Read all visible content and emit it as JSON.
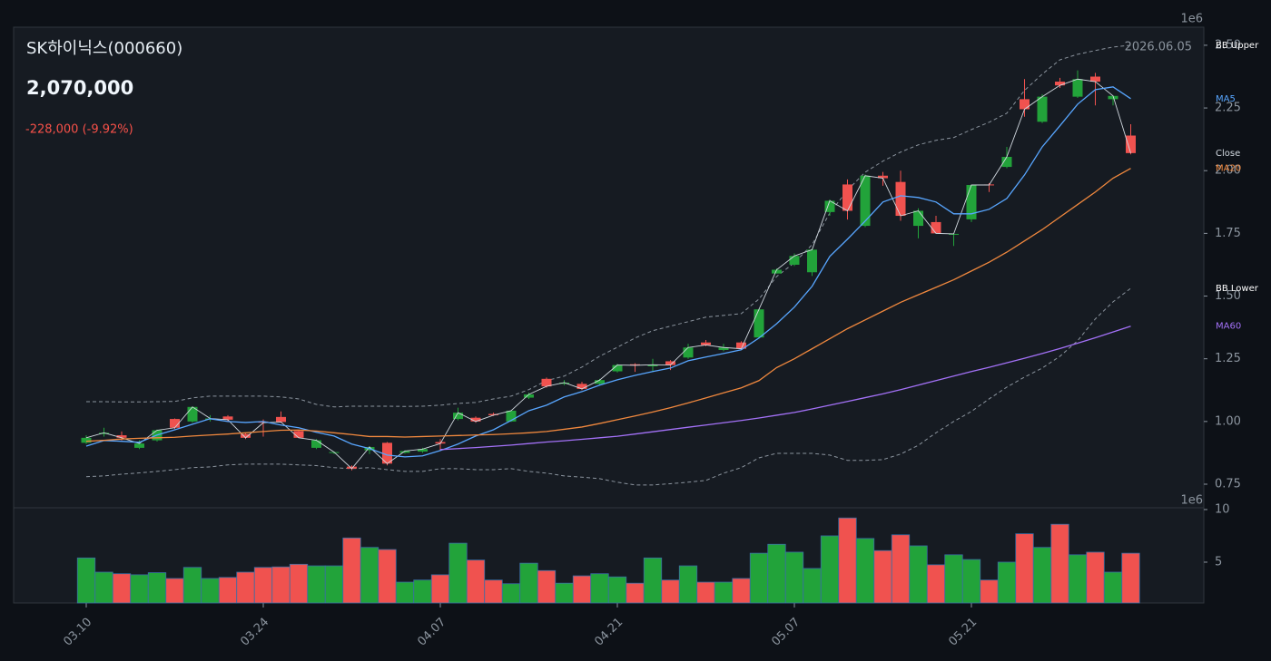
{
  "chart_data": [
    {
      "type": "candlestick",
      "title": "SK하이닉스(000660)",
      "price_label": "2,070,000",
      "change_label": "-228,000 (-9.92%)",
      "date_label": "2026.06.05",
      "offset_label": "1e6",
      "categories": [
        "03.10",
        null,
        null,
        null,
        null,
        null,
        null,
        null,
        null,
        null,
        "03.24",
        null,
        null,
        null,
        null,
        null,
        null,
        null,
        null,
        null,
        "04.07",
        null,
        null,
        null,
        null,
        null,
        null,
        null,
        null,
        null,
        "04.21",
        null,
        null,
        null,
        null,
        null,
        null,
        null,
        null,
        null,
        "05.07",
        null,
        null,
        null,
        null,
        null,
        null,
        null,
        null,
        null,
        "05.21",
        null,
        null,
        null,
        null,
        null,
        null,
        null,
        null,
        null
      ],
      "open": [
        0.915,
        0.95,
        0.945,
        0.895,
        0.925,
        1.01,
        1.0,
        1.008,
        1.02,
        0.95,
        1.0,
        1.018,
        0.962,
        0.895,
        0.875,
        0.82,
        0.885,
        0.915,
        0.875,
        0.88,
        0.918,
        1.01,
        1.015,
        1.03,
        1.0,
        1.095,
        1.17,
        1.15,
        1.15,
        1.15,
        1.2,
        1.228,
        1.22,
        1.24,
        1.255,
        1.315,
        1.285,
        1.315,
        1.335,
        1.59,
        1.625,
        1.595,
        1.835,
        1.945,
        1.78,
        1.98,
        1.955,
        1.78,
        1.795,
        1.745,
        1.806,
        1.945,
        2.015,
        2.285,
        2.195,
        2.355,
        2.295,
        2.375,
        2.285,
        2.14
      ],
      "high": [
        0.945,
        0.975,
        0.96,
        0.925,
        0.968,
        1.012,
        1.06,
        1.025,
        1.025,
        0.955,
        1.008,
        1.04,
        0.965,
        0.93,
        0.88,
        0.825,
        0.902,
        0.918,
        0.885,
        0.895,
        0.93,
        1.055,
        1.02,
        1.035,
        1.045,
        1.115,
        1.175,
        1.165,
        1.158,
        1.17,
        1.23,
        1.232,
        1.25,
        1.245,
        1.31,
        1.325,
        1.31,
        1.32,
        1.45,
        1.61,
        1.67,
        1.69,
        1.885,
        1.965,
        1.985,
        1.995,
        2.0,
        1.85,
        1.82,
        1.75,
        1.945,
        1.95,
        2.095,
        2.365,
        2.305,
        2.37,
        2.4,
        2.39,
        2.3,
        2.185
      ],
      "low": [
        0.91,
        0.94,
        0.925,
        0.89,
        0.92,
        0.97,
        0.995,
        1.0,
        1.0,
        0.93,
        0.94,
        0.995,
        0.935,
        0.89,
        0.87,
        0.805,
        0.87,
        0.825,
        0.872,
        0.875,
        0.885,
        1.005,
        0.995,
        1.022,
        0.998,
        1.09,
        1.135,
        1.145,
        1.125,
        1.145,
        1.195,
        1.198,
        1.2,
        1.205,
        1.25,
        1.3,
        1.28,
        1.285,
        1.33,
        1.59,
        1.62,
        1.58,
        1.82,
        1.805,
        1.775,
        1.94,
        1.8,
        1.73,
        1.75,
        1.7,
        1.795,
        1.915,
        2.01,
        2.215,
        2.19,
        2.33,
        2.29,
        2.26,
        2.26,
        2.065
      ],
      "close": [
        0.935,
        0.955,
        0.935,
        0.912,
        0.965,
        0.975,
        1.058,
        1.012,
        1.007,
        0.935,
        0.995,
        0.998,
        0.935,
        0.925,
        0.878,
        0.812,
        0.898,
        0.832,
        0.882,
        0.89,
        0.912,
        1.035,
        1.0,
        1.025,
        1.043,
        1.108,
        1.14,
        1.155,
        1.13,
        1.165,
        1.225,
        1.224,
        1.226,
        1.225,
        1.295,
        1.305,
        1.295,
        1.29,
        1.447,
        1.605,
        1.66,
        1.685,
        1.88,
        1.84,
        1.98,
        1.97,
        1.82,
        1.84,
        1.75,
        1.748,
        1.943,
        1.943,
        2.055,
        2.245,
        2.295,
        2.34,
        2.365,
        2.355,
        2.298,
        2.07
      ],
      "up_color": "#22a33a",
      "down_color": "#f0524f",
      "close_name": "Close",
      "close_color": "#d0d7de",
      "lines": [
        {
          "name": "BB Upper",
          "color": "#8b949e",
          "label_color": "#ffffff",
          "dashed": true,
          "values": [
            1.079,
            1.079,
            1.078,
            1.078,
            1.079,
            1.08,
            1.094,
            1.101,
            1.101,
            1.101,
            1.101,
            1.098,
            1.09,
            1.068,
            1.058,
            1.061,
            1.061,
            1.061,
            1.06,
            1.061,
            1.065,
            1.072,
            1.076,
            1.09,
            1.101,
            1.127,
            1.163,
            1.181,
            1.217,
            1.26,
            1.296,
            1.333,
            1.362,
            1.38,
            1.398,
            1.416,
            1.423,
            1.43,
            1.488,
            1.578,
            1.633,
            1.705,
            1.831,
            1.922,
            1.994,
            2.038,
            2.074,
            2.103,
            2.121,
            2.132,
            2.164,
            2.193,
            2.229,
            2.32,
            2.385,
            2.442,
            2.464,
            2.479,
            2.493,
            2.5
          ]
        },
        {
          "name": "MA5",
          "color": "#58a6ff",
          "label_color": "#58a6ff",
          "dashed": false,
          "values": [
            0.902,
            0.924,
            0.921,
            0.917,
            0.946,
            0.967,
            0.989,
            1.011,
            1.0,
            0.996,
            1.0,
            0.986,
            0.975,
            0.957,
            0.942,
            0.91,
            0.892,
            0.866,
            0.859,
            0.863,
            0.884,
            0.91,
            0.942,
            0.967,
            1.004,
            1.043,
            1.065,
            1.098,
            1.119,
            1.145,
            1.166,
            1.184,
            1.199,
            1.213,
            1.242,
            1.257,
            1.271,
            1.286,
            1.333,
            1.39,
            1.456,
            1.539,
            1.658,
            1.727,
            1.799,
            1.875,
            1.9,
            1.893,
            1.875,
            1.828,
            1.828,
            1.846,
            1.889,
            1.983,
            2.095,
            2.179,
            2.265,
            2.323,
            2.334,
            2.287
          ]
        },
        {
          "name": "MA20",
          "color": "#f0883e",
          "label_color": "#f0883e",
          "dashed": false,
          "values": [
            0.921,
            0.925,
            0.93,
            0.933,
            0.935,
            0.937,
            0.942,
            0.946,
            0.95,
            0.955,
            0.96,
            0.965,
            0.966,
            0.962,
            0.955,
            0.948,
            0.94,
            0.94,
            0.938,
            0.94,
            0.942,
            0.944,
            0.946,
            0.948,
            0.951,
            0.955,
            0.96,
            0.969,
            0.978,
            0.992,
            1.007,
            1.022,
            1.038,
            1.055,
            1.074,
            1.094,
            1.114,
            1.134,
            1.163,
            1.215,
            1.25,
            1.29,
            1.33,
            1.37,
            1.405,
            1.44,
            1.475,
            1.505,
            1.535,
            1.565,
            1.6,
            1.635,
            1.675,
            1.72,
            1.765,
            1.815,
            1.865,
            1.915,
            1.97,
            2.009
          ]
        },
        {
          "name": "BB Lower",
          "color": "#8b949e",
          "label_color": "#ffffff",
          "dashed": true,
          "values": [
            0.78,
            0.783,
            0.79,
            0.795,
            0.801,
            0.808,
            0.816,
            0.819,
            0.827,
            0.83,
            0.83,
            0.83,
            0.827,
            0.824,
            0.816,
            0.812,
            0.816,
            0.808,
            0.801,
            0.801,
            0.812,
            0.812,
            0.808,
            0.808,
            0.812,
            0.801,
            0.794,
            0.783,
            0.778,
            0.772,
            0.758,
            0.747,
            0.747,
            0.752,
            0.758,
            0.765,
            0.794,
            0.816,
            0.855,
            0.873,
            0.873,
            0.873,
            0.866,
            0.845,
            0.845,
            0.848,
            0.87,
            0.905,
            0.955,
            1.0,
            1.04,
            1.09,
            1.137,
            1.177,
            1.213,
            1.26,
            1.322,
            1.409,
            1.477,
            1.531
          ]
        },
        {
          "name": "MA60",
          "color": "#a371f7",
          "label_color": "#a371f7",
          "dashed": false,
          "values": [
            null,
            null,
            null,
            null,
            null,
            null,
            null,
            null,
            null,
            null,
            null,
            null,
            null,
            null,
            null,
            null,
            null,
            null,
            null,
            null,
            0.888,
            0.892,
            0.896,
            0.901,
            0.906,
            0.912,
            0.918,
            0.923,
            0.929,
            0.935,
            0.941,
            0.95,
            0.959,
            0.968,
            0.977,
            0.986,
            0.995,
            1.004,
            1.014,
            1.025,
            1.036,
            1.05,
            1.065,
            1.08,
            1.095,
            1.11,
            1.127,
            1.145,
            1.163,
            1.181,
            1.199,
            1.216,
            1.234,
            1.252,
            1.271,
            1.291,
            1.312,
            1.334,
            1.357,
            1.38
          ]
        }
      ],
      "ylim": [
        0.656,
        2.572
      ],
      "yticks": [
        {
          "value": 0.75,
          "label": "0.75"
        },
        {
          "value": 1.0,
          "label": "1.00"
        },
        {
          "value": 1.25,
          "label": "1.25"
        },
        {
          "value": 1.5,
          "label": "1.50"
        },
        {
          "value": 1.75,
          "label": "1.75"
        },
        {
          "value": 2.0,
          "label": "2.00"
        },
        {
          "value": 2.25,
          "label": "2.25"
        },
        {
          "value": 2.5,
          "label": "2.50"
        }
      ]
    },
    {
      "type": "bar",
      "offset_label": "1e6",
      "values": [
        5.4,
        4.05,
        3.9,
        3.8,
        4.0,
        3.45,
        4.5,
        3.45,
        3.55,
        4.05,
        4.5,
        4.55,
        4.8,
        4.65,
        4.65,
        7.3,
        6.4,
        6.2,
        3.1,
        3.3,
        3.8,
        6.8,
        5.2,
        3.3,
        2.95,
        4.9,
        4.2,
        3.0,
        3.7,
        3.9,
        3.6,
        3.0,
        5.4,
        3.3,
        4.65,
        3.1,
        3.1,
        3.45,
        5.85,
        6.7,
        5.95,
        4.4,
        7.5,
        9.2,
        7.25,
        6.1,
        7.6,
        6.55,
        4.75,
        5.7,
        5.25,
        3.3,
        5.0,
        7.7,
        6.4,
        8.6,
        5.7,
        5.95,
        4.05,
        5.85
      ],
      "edge_color": "#3a6ea5",
      "ylim": [
        1.12,
        10.17
      ],
      "yticks": [
        5,
        10
      ]
    }
  ]
}
